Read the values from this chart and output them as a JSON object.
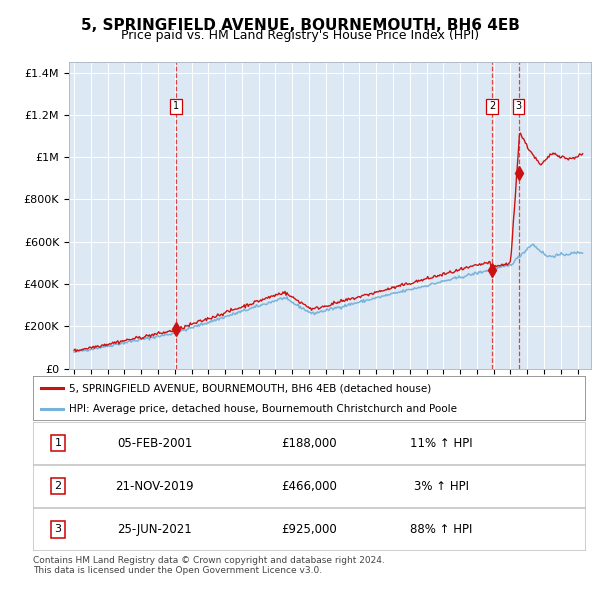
{
  "title": "5, SPRINGFIELD AVENUE, BOURNEMOUTH, BH6 4EB",
  "subtitle": "Price paid vs. HM Land Registry's House Price Index (HPI)",
  "title_fontsize": 11,
  "subtitle_fontsize": 9,
  "plot_bg_color": "#dce9f5",
  "hpi_color": "#7ab3d9",
  "property_color": "#cc1111",
  "sale_marker_color": "#cc1111",
  "dashed_line_color": "#dd3333",
  "ylim": [
    0,
    1450000
  ],
  "yticks": [
    0,
    200000,
    400000,
    600000,
    800000,
    1000000,
    1200000,
    1400000
  ],
  "ytick_labels": [
    "£0",
    "£200K",
    "£400K",
    "£600K",
    "£800K",
    "£1M",
    "£1.2M",
    "£1.4M"
  ],
  "xlim_start": 1994.7,
  "xlim_end": 2025.8,
  "sale_dates_year": [
    2001.09,
    2019.9,
    2021.49
  ],
  "sale_prices": [
    188000,
    466000,
    925000
  ],
  "sale_labels": [
    "1",
    "2",
    "3"
  ],
  "legend_property": "5, SPRINGFIELD AVENUE, BOURNEMOUTH, BH6 4EB (detached house)",
  "legend_hpi": "HPI: Average price, detached house, Bournemouth Christchurch and Poole",
  "table_rows": [
    [
      "1",
      "05-FEB-2001",
      "£188,000",
      "11% ↑ HPI"
    ],
    [
      "2",
      "21-NOV-2019",
      "£466,000",
      "3% ↑ HPI"
    ],
    [
      "3",
      "25-JUN-2021",
      "£925,000",
      "88% ↑ HPI"
    ]
  ],
  "footer": "Contains HM Land Registry data © Crown copyright and database right 2024.\nThis data is licensed under the Open Government Licence v3.0.",
  "grid_color": "#ffffff"
}
